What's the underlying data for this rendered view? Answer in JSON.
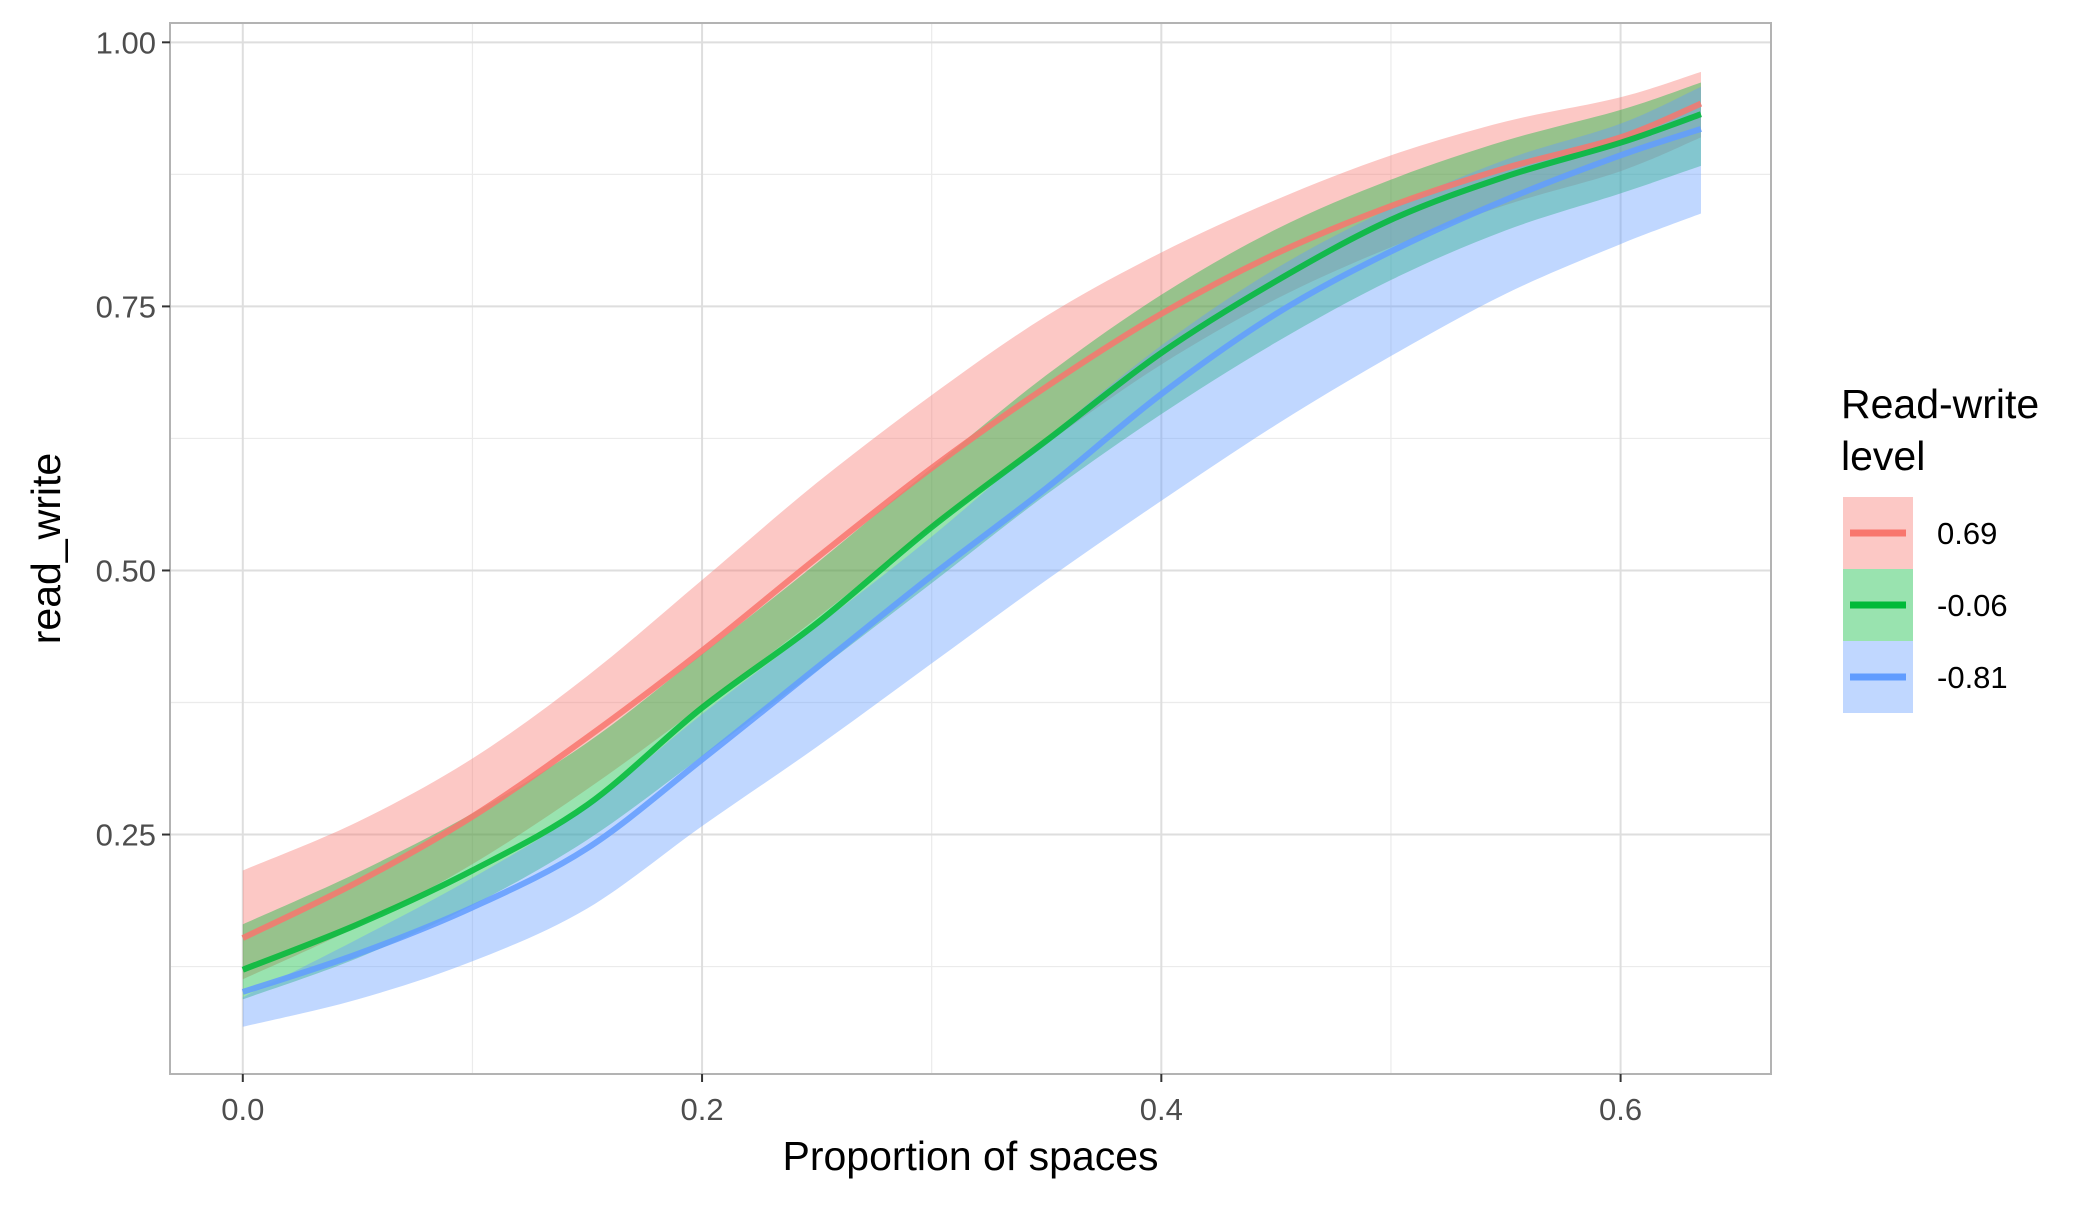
{
  "chart_data": {
    "type": "line",
    "xlabel": "Proportion of spaces",
    "ylabel": "read_write",
    "xlim": [
      -0.0317,
      0.6655
    ],
    "ylim": [
      0.0233,
      1.0183
    ],
    "x_ticks": [
      0.0,
      0.2,
      0.4,
      0.6
    ],
    "x_tick_labels": [
      "0.0",
      "0.2",
      "0.4",
      "0.6"
    ],
    "x_minor_ticks": [
      0.1,
      0.3,
      0.5
    ],
    "y_ticks": [
      0.25,
      0.5,
      0.75,
      1.0
    ],
    "y_tick_labels": [
      "0.25",
      "0.50",
      "0.75",
      "1.00"
    ],
    "y_minor_ticks": [
      0.125,
      0.375,
      0.625,
      0.875
    ],
    "grid": true,
    "legend": {
      "title_lines": [
        "Read-write",
        "level"
      ],
      "position": "right"
    },
    "x": [
      0.0,
      0.05,
      0.1,
      0.15,
      0.2,
      0.25,
      0.3,
      0.35,
      0.4,
      0.45,
      0.5,
      0.55,
      0.6,
      0.635
    ],
    "series": [
      {
        "name": "0.69",
        "color": "#F8766D",
        "fill_color": "#F8766D",
        "y": [
          0.152,
          0.205,
          0.267,
          0.342,
          0.424,
          0.512,
          0.597,
          0.674,
          0.743,
          0.8,
          0.845,
          0.881,
          0.91,
          0.942
        ],
        "lower": [
          0.113,
          0.163,
          0.222,
          0.293,
          0.372,
          0.455,
          0.54,
          0.62,
          0.695,
          0.757,
          0.806,
          0.846,
          0.878,
          0.91
        ],
        "upper": [
          0.216,
          0.262,
          0.322,
          0.4,
          0.491,
          0.583,
          0.666,
          0.741,
          0.801,
          0.851,
          0.893,
          0.925,
          0.948,
          0.972
        ]
      },
      {
        "name": "-0.06",
        "color": "#00BA38",
        "fill_color": "#00BA38",
        "y": [
          0.122,
          0.165,
          0.216,
          0.278,
          0.37,
          0.45,
          0.541,
          0.623,
          0.706,
          0.774,
          0.832,
          0.873,
          0.905,
          0.932
        ],
        "lower": [
          0.094,
          0.133,
          0.183,
          0.245,
          0.324,
          0.405,
          0.488,
          0.572,
          0.648,
          0.716,
          0.775,
          0.822,
          0.857,
          0.883
        ],
        "upper": [
          0.165,
          0.214,
          0.27,
          0.337,
          0.421,
          0.507,
          0.597,
          0.685,
          0.761,
          0.823,
          0.87,
          0.907,
          0.936,
          0.962
        ]
      },
      {
        "name": "-0.81",
        "color": "#619CFF",
        "fill_color": "#619CFF",
        "y": [
          0.101,
          0.137,
          0.181,
          0.237,
          0.321,
          0.408,
          0.495,
          0.578,
          0.667,
          0.743,
          0.802,
          0.851,
          0.893,
          0.918
        ],
        "lower": [
          0.068,
          0.094,
          0.13,
          0.18,
          0.258,
          0.333,
          0.412,
          0.491,
          0.566,
          0.638,
          0.703,
          0.762,
          0.809,
          0.838
        ],
        "upper": [
          0.096,
          0.151,
          0.209,
          0.276,
          0.364,
          0.447,
          0.532,
          0.625,
          0.713,
          0.786,
          0.843,
          0.889,
          0.923,
          0.958
        ]
      }
    ]
  }
}
